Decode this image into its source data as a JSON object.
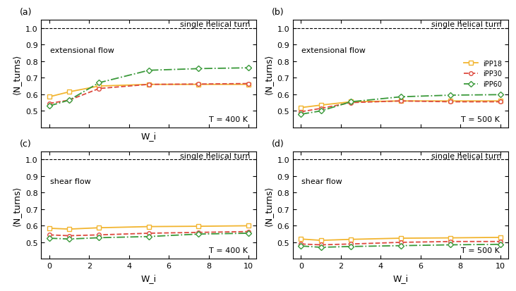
{
  "chart_data": [
    {
      "type": "line",
      "title": "(a)",
      "x_label": "W_i",
      "y_label": "⟨N_turns⟩",
      "annotations": [
        "extensional flow",
        "T = 400 K",
        "single helical turn"
      ],
      "hline": 1.0,
      "x": [
        0,
        1,
        2.5,
        5,
        7.5,
        10
      ],
      "xlim": [
        -0.4,
        10.4
      ],
      "xticks": [
        0,
        2,
        4,
        6,
        8,
        10
      ],
      "ylim": [
        0.4,
        1.05
      ],
      "yticks": [
        0.5,
        0.6,
        0.7,
        0.8,
        0.9,
        1.0
      ],
      "tick_labels": "y",
      "series": [
        {
          "name": "iPP18",
          "color": "#f2b530",
          "marker": "square",
          "line_style": "solid",
          "values": [
            0.585,
            0.615,
            0.65,
            0.66,
            0.66,
            0.66
          ]
        },
        {
          "name": "iPP30",
          "color": "#dd4a3f",
          "marker": "circle",
          "line_style": "dashed",
          "values": [
            0.545,
            0.565,
            0.635,
            0.66,
            0.662,
            0.665
          ]
        },
        {
          "name": "iPP60",
          "color": "#3a993a",
          "marker": "diamond",
          "line_style": "dashdot",
          "values": [
            0.53,
            0.565,
            0.67,
            0.745,
            0.755,
            0.76
          ]
        }
      ]
    },
    {
      "type": "line",
      "title": "(b)",
      "y_label": "⟨N_turns⟩",
      "annotations": [
        "extensional flow",
        "T = 500 K",
        "single helical turn"
      ],
      "hline": 1.0,
      "x": [
        0,
        1,
        2.5,
        5,
        7.5,
        10
      ],
      "xlim": [
        -0.4,
        10.4
      ],
      "xticks": [
        0,
        2,
        4,
        6,
        8,
        10
      ],
      "ylim": [
        0.4,
        1.05
      ],
      "yticks": [
        0.5,
        0.6,
        0.7,
        0.8,
        0.9,
        1.0
      ],
      "tick_labels": "y",
      "legend": "center right",
      "series": [
        {
          "name": "iPP18",
          "color": "#f2b530",
          "marker": "square",
          "line_style": "solid",
          "values": [
            0.52,
            0.535,
            0.555,
            0.56,
            0.56,
            0.56
          ]
        },
        {
          "name": "iPP30",
          "color": "#dd4a3f",
          "marker": "circle",
          "line_style": "dashed",
          "values": [
            0.495,
            0.515,
            0.55,
            0.56,
            0.555,
            0.555
          ]
        },
        {
          "name": "iPP60",
          "color": "#3a993a",
          "marker": "diamond",
          "line_style": "dashdot",
          "values": [
            0.48,
            0.5,
            0.555,
            0.585,
            0.595,
            0.598
          ]
        }
      ]
    },
    {
      "type": "line",
      "title": "(c)",
      "x_label": "W_i",
      "y_label": "⟨N_turns⟩",
      "annotations": [
        "shear flow",
        "T = 400 K",
        "single helical turn"
      ],
      "hline": 1.0,
      "x": [
        0,
        1,
        2.5,
        5,
        7.5,
        10
      ],
      "xlim": [
        -0.4,
        10.4
      ],
      "xticks": [
        0,
        2,
        4,
        6,
        8,
        10
      ],
      "ylim": [
        0.4,
        1.05
      ],
      "yticks": [
        0.5,
        0.6,
        0.7,
        0.8,
        0.9,
        1.0
      ],
      "series": [
        {
          "name": "iPP18",
          "color": "#f2b530",
          "marker": "square",
          "line_style": "solid",
          "values": [
            0.585,
            0.58,
            0.588,
            0.595,
            0.597,
            0.6
          ]
        },
        {
          "name": "iPP30",
          "color": "#dd4a3f",
          "marker": "circle",
          "line_style": "dashed",
          "values": [
            0.545,
            0.54,
            0.545,
            0.555,
            0.56,
            0.565
          ]
        },
        {
          "name": "iPP60",
          "color": "#3a993a",
          "marker": "diamond",
          "line_style": "dashdot",
          "values": [
            0.525,
            0.52,
            0.528,
            0.535,
            0.55,
            0.555
          ]
        }
      ]
    },
    {
      "type": "line",
      "title": "(d)",
      "x_label": "W_i",
      "y_label": "⟨N_turns⟩",
      "annotations": [
        "shear flow",
        "T = 500 K",
        "single helical turn"
      ],
      "hline": 1.0,
      "x": [
        0,
        1,
        2.5,
        5,
        7.5,
        10
      ],
      "xlim": [
        -0.4,
        10.4
      ],
      "xticks": [
        0,
        2,
        4,
        6,
        8,
        10
      ],
      "ylim": [
        0.4,
        1.05
      ],
      "yticks": [
        0.5,
        0.6,
        0.7,
        0.8,
        0.9,
        1.0
      ],
      "series": [
        {
          "name": "iPP18",
          "color": "#f2b530",
          "marker": "square",
          "line_style": "solid",
          "values": [
            0.52,
            0.512,
            0.518,
            0.525,
            0.527,
            0.53
          ]
        },
        {
          "name": "iPP30",
          "color": "#dd4a3f",
          "marker": "circle",
          "line_style": "dashed",
          "values": [
            0.49,
            0.485,
            0.49,
            0.5,
            0.505,
            0.505
          ]
        },
        {
          "name": "iPP60",
          "color": "#3a993a",
          "marker": "diamond",
          "line_style": "dashdot",
          "values": [
            0.478,
            0.47,
            0.475,
            0.48,
            0.485,
            0.488
          ]
        }
      ]
    }
  ]
}
